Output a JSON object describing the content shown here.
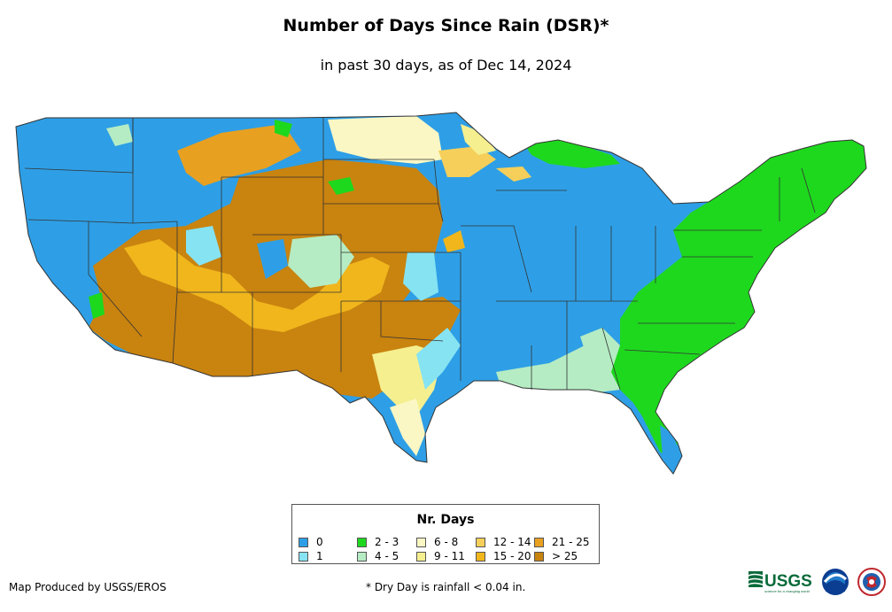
{
  "title": "Number of Days Since Rain (DSR)*",
  "subtitle": "in past 30 days, as of Dec 14, 2024",
  "legend": {
    "title": "Nr. Days",
    "items": [
      {
        "label": "0",
        "color": "#2e9fe6"
      },
      {
        "label": "1",
        "color": "#86e3f2"
      },
      {
        "label": "2 - 3",
        "color": "#1ed81e"
      },
      {
        "label": "4 - 5",
        "color": "#b5ecc4"
      },
      {
        "label": "6 - 8",
        "color": "#fbf7c4"
      },
      {
        "label": "9 - 11",
        "color": "#f5ef8f"
      },
      {
        "label": "12 - 14",
        "color": "#f5cf5a"
      },
      {
        "label": "15 - 20",
        "color": "#f0b61c"
      },
      {
        "label": "21 - 25",
        "color": "#e8a020"
      },
      {
        "label": "> 25",
        "color": "#c9830f"
      }
    ]
  },
  "footer": {
    "producer": "Map Produced by USGS/EROS",
    "note": "* Dry Day is rainfall < 0.04 in."
  },
  "logos": {
    "usgs_text": "USGS",
    "usgs_tagline": "science for a changing world"
  }
}
